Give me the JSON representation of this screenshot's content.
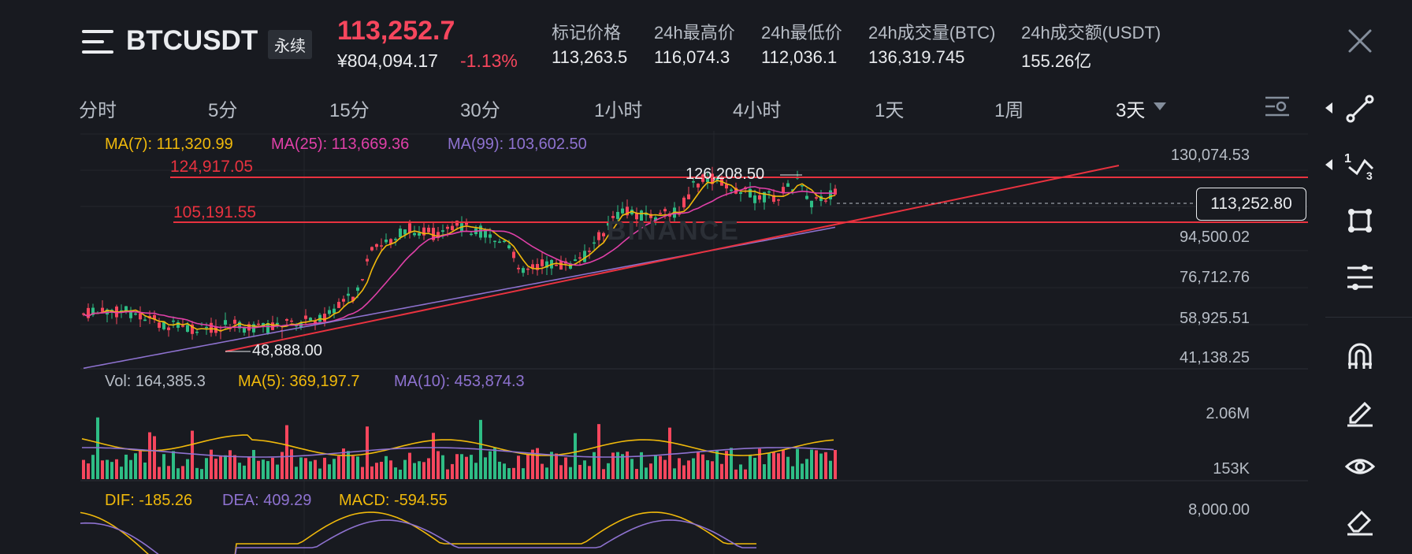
{
  "header": {
    "symbol": "BTCUSDT",
    "contract_type": "永续",
    "last_price": "113,252.7",
    "cny_price": "¥804,094.17",
    "change_pct": "-1.13%",
    "stats": [
      {
        "label": "标记价格",
        "value": "113,263.5"
      },
      {
        "label": "24h最高价",
        "value": "116,074.3"
      },
      {
        "label": "24h最低价",
        "value": "112,036.1"
      },
      {
        "label": "24h成交量(BTC)",
        "value": "136,319.745"
      },
      {
        "label": "24h成交额(USDT)",
        "value": "155.26亿"
      }
    ]
  },
  "intervals": [
    "分时",
    "5分",
    "15分",
    "30分",
    "1小时",
    "4小时",
    "1天",
    "1周",
    "3天"
  ],
  "active_interval": "3天",
  "indicators": {
    "ma7": "MA(7): 111,320.99",
    "ma25": "MA(25): 113,669.36",
    "ma99": "MA(99): 103,602.50",
    "vol": "Vol: 164,385.3",
    "vol_ma5": "MA(5): 369,197.7",
    "vol_ma10": "MA(10): 453,874.3",
    "dif": "DIF: -185.26",
    "dea": "DEA: 409.29",
    "macd": "MACD: -594.55"
  },
  "price_axis": [
    "130,074.53",
    "94,500.02",
    "76,712.76",
    "58,925.51",
    "41,138.25"
  ],
  "current_price_label": "113,252.80",
  "volume_axis": [
    "2.06M",
    "153K"
  ],
  "macd_axis": [
    "8,000.00"
  ],
  "annotations": {
    "high": "126,208.50",
    "low": "48,888.00",
    "line_1": "124,917.05",
    "line_2": "105,191.55"
  },
  "watermark": "BINANCE",
  "colors": {
    "up": "#2ebd85",
    "down": "#f6465d",
    "ma7": "#f0b90b",
    "ma25": "#e040a8",
    "ma99": "#8e72d0",
    "drawing_line": "#e8323f"
  },
  "toolbar_icons": [
    "line-tool-icon",
    "fib-tool-icon",
    "shape-tool-icon",
    "settings-lines-icon",
    "magnet-icon",
    "pen-icon",
    "eye-icon",
    "eraser-icon"
  ]
}
